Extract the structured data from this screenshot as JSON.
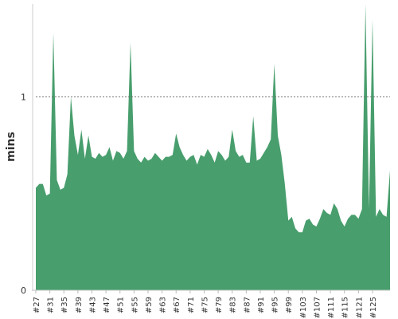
{
  "chart_data": {
    "type": "area",
    "y_label": "mins",
    "color": "#489e6d",
    "categories": [
      "#27",
      null,
      null,
      null,
      "#31",
      null,
      null,
      null,
      "#35",
      null,
      null,
      null,
      "#39",
      null,
      null,
      null,
      "#43",
      null,
      null,
      null,
      "#47",
      null,
      null,
      null,
      "#51",
      null,
      null,
      null,
      "#55",
      null,
      null,
      null,
      "#59",
      null,
      null,
      null,
      "#63",
      null,
      null,
      null,
      "#67",
      null,
      null,
      null,
      "#71",
      null,
      null,
      null,
      "#75",
      null,
      null,
      null,
      "#79",
      null,
      null,
      null,
      "#83",
      null,
      null,
      null,
      "#87",
      null,
      null,
      null,
      "#91",
      null,
      null,
      null,
      "#95",
      null,
      null,
      null,
      "#99",
      null,
      null,
      null,
      "#103",
      null,
      null,
      null,
      "#107",
      null,
      null,
      null,
      "#111",
      null,
      null,
      null,
      "#115",
      null,
      null,
      null,
      "#121",
      null,
      null,
      null,
      "#125",
      null,
      null,
      null,
      null,
      null
    ],
    "values": [
      0.53,
      0.55,
      0.55,
      0.49,
      0.5,
      1.33,
      0.57,
      0.52,
      0.53,
      0.6,
      1.0,
      0.8,
      0.7,
      0.83,
      0.68,
      0.8,
      0.69,
      0.68,
      0.71,
      0.69,
      0.7,
      0.74,
      0.67,
      0.72,
      0.71,
      0.68,
      0.72,
      1.28,
      0.72,
      0.68,
      0.66,
      0.69,
      0.67,
      0.68,
      0.71,
      0.69,
      0.67,
      0.69,
      0.69,
      0.7,
      0.81,
      0.74,
      0.7,
      0.67,
      0.69,
      0.7,
      0.65,
      0.7,
      0.69,
      0.73,
      0.7,
      0.66,
      0.72,
      0.7,
      0.67,
      0.69,
      0.83,
      0.72,
      0.69,
      0.7,
      0.66,
      0.66,
      0.9,
      0.67,
      0.68,
      0.71,
      0.74,
      0.78,
      1.17,
      0.8,
      0.7,
      0.55,
      0.36,
      0.38,
      0.32,
      0.3,
      0.3,
      0.36,
      0.37,
      0.34,
      0.33,
      0.37,
      0.42,
      0.4,
      0.39,
      0.45,
      0.42,
      0.36,
      0.33,
      0.37,
      0.39,
      0.39,
      0.37,
      0.42,
      1.48,
      0.42,
      1.4,
      0.38,
      0.42,
      0.39,
      0.38,
      0.62
    ],
    "ylim": [
      0,
      1.48
    ],
    "yticks": [
      0,
      1
    ],
    "grid": true
  }
}
